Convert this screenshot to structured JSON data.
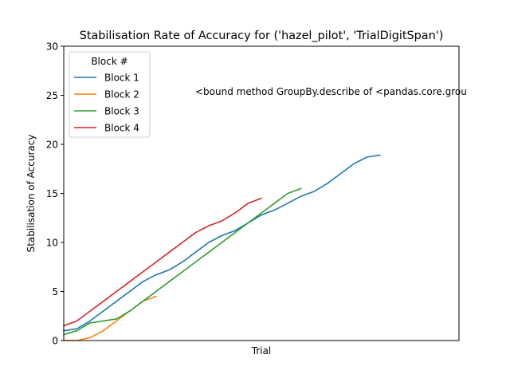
{
  "chart_data": {
    "type": "line",
    "title": "Stabilisation Rate of Accuracy for ('hazel_pilot', 'TrialDigitSpan')",
    "xlabel": "Trial",
    "ylabel": "Stabilisation of Accuracy",
    "xlim": [
      0,
      30
    ],
    "ylim": [
      0,
      30
    ],
    "yticks": [
      "0",
      "5",
      "10",
      "15",
      "20",
      "25",
      "30"
    ],
    "grid": false,
    "legend": {
      "title": "Block #",
      "position": "top-left"
    },
    "annotation": "<bound method GroupBy.describe of <pandas.core.grou",
    "series": [
      {
        "name": "Block 1",
        "color": "#1f77b4",
        "x": [
          0,
          1,
          2,
          3,
          4,
          5,
          6,
          7,
          8,
          9,
          10,
          11,
          12,
          13,
          14,
          15,
          16,
          17,
          18,
          19,
          20,
          21,
          22,
          23,
          24
        ],
        "y": [
          1.0,
          1.2,
          2.0,
          3.0,
          4.0,
          5.0,
          6.0,
          6.7,
          7.2,
          8.0,
          9.0,
          10.0,
          10.7,
          11.2,
          12.0,
          12.8,
          13.3,
          14.0,
          14.7,
          15.2,
          16.0,
          17.0,
          18.0,
          18.7,
          18.9
        ]
      },
      {
        "name": "Block 2",
        "color": "#ff7f0e",
        "x": [
          0,
          1,
          2,
          3,
          4,
          5,
          6,
          7
        ],
        "y": [
          0.0,
          0.0,
          0.3,
          1.0,
          2.0,
          3.0,
          4.0,
          4.5
        ]
      },
      {
        "name": "Block 3",
        "color": "#2ca02c",
        "x": [
          0,
          1,
          2,
          3,
          4,
          5,
          6,
          7,
          8,
          9,
          10,
          11,
          12,
          13,
          14,
          15,
          16,
          17,
          18
        ],
        "y": [
          0.6,
          1.0,
          1.8,
          2.0,
          2.2,
          3.0,
          4.0,
          5.0,
          6.0,
          7.0,
          8.0,
          9.0,
          10.0,
          11.0,
          12.0,
          13.0,
          14.0,
          15.0,
          15.5
        ]
      },
      {
        "name": "Block 4",
        "color": "#d62728",
        "x": [
          0,
          1,
          2,
          3,
          4,
          5,
          6,
          7,
          8,
          9,
          10,
          11,
          12,
          13,
          14,
          15
        ],
        "y": [
          1.5,
          2.0,
          3.0,
          4.0,
          5.0,
          6.0,
          7.0,
          8.0,
          9.0,
          10.0,
          11.0,
          11.7,
          12.2,
          13.0,
          14.0,
          14.5
        ]
      }
    ]
  }
}
